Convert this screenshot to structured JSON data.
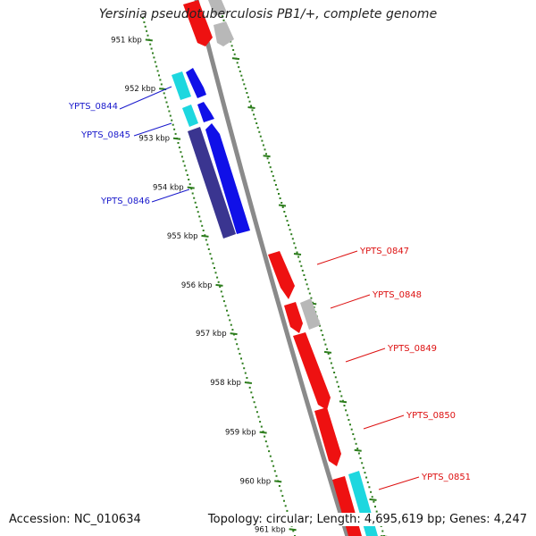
{
  "header": {
    "title": "Yersinia pseudotuberculosis PB1/+, complete genome"
  },
  "footer": {
    "accession": "Accession: NC_010634",
    "summary": "Topology: circular; Length: 4,695,619 bp; Genes: 4,247"
  },
  "colors": {
    "backbone": "#8a8a8a",
    "tick": "#2d7d1d",
    "forward_cds": "#1010e8",
    "forward_dark": "#3a3590",
    "reverse_cds": "#ee1111",
    "cyan": "#1dd7df",
    "gray": "#b8b8b8",
    "label_blue": "#1a1acc",
    "label_red": "#dd1111"
  },
  "ticks": [
    "951 kbp",
    "952 kbp",
    "953 kbp",
    "954 kbp",
    "955 kbp",
    "956 kbp",
    "957 kbp",
    "958 kbp",
    "959 kbp",
    "960 kbp",
    "961 kbp"
  ],
  "genes_left": [
    {
      "name": "YPTS_0844"
    },
    {
      "name": "YPTS_0845"
    },
    {
      "name": "YPTS_0846"
    }
  ],
  "genes_right": [
    {
      "name": "YPTS_0847"
    },
    {
      "name": "YPTS_0848"
    },
    {
      "name": "YPTS_0849"
    },
    {
      "name": "YPTS_0850"
    },
    {
      "name": "YPTS_0851"
    }
  ]
}
